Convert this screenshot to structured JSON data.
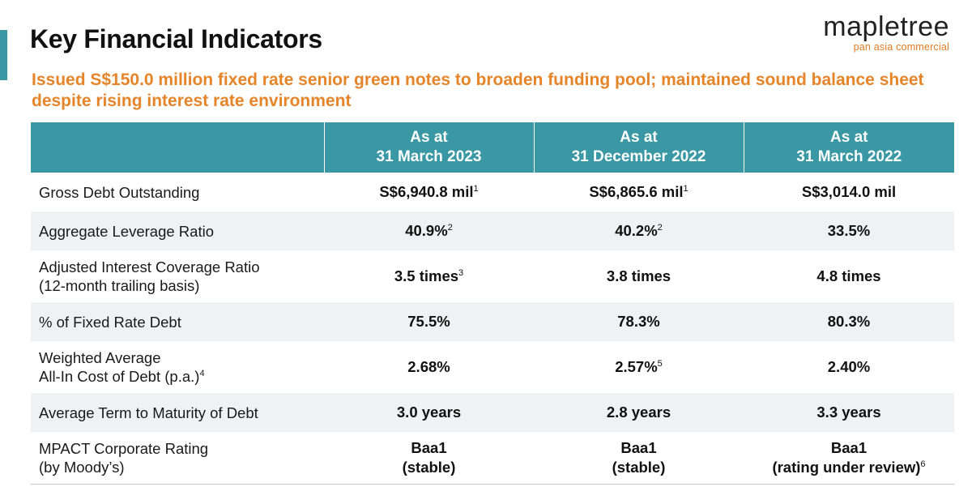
{
  "header": {
    "title": "Key Financial Indicators",
    "subtitle": "Issued S$150.0 million fixed rate senior green notes to broaden funding pool; maintained sound balance sheet despite rising interest rate environment"
  },
  "logo": {
    "wordmark": "mapletree",
    "tagline": "pan asia commercial"
  },
  "colors": {
    "accent": "#3a98a4",
    "subtitle": "#e6842a",
    "row_shade": "#f0f1f2"
  },
  "table": {
    "columns": [
      {
        "line1": "As at",
        "line2": "31 March 2023"
      },
      {
        "line1": "As at",
        "line2": "31 December 2022"
      },
      {
        "line1": "As at",
        "line2": "31 March 2022"
      }
    ],
    "rows": [
      {
        "label_line1": "Gross Debt Outstanding",
        "label_line2": "",
        "label_sup": "",
        "cells": [
          {
            "text": "S$6,940.8 mil",
            "sup": "1"
          },
          {
            "text": "S$6,865.6 mil",
            "sup": "1"
          },
          {
            "text": "S$3,014.0 mil",
            "sup": ""
          }
        ]
      },
      {
        "label_line1": "Aggregate Leverage Ratio",
        "label_line2": "",
        "label_sup": "",
        "cells": [
          {
            "text": "40.9%",
            "sup": "2"
          },
          {
            "text": "40.2%",
            "sup": "2"
          },
          {
            "text": "33.5%",
            "sup": ""
          }
        ]
      },
      {
        "label_line1": "Adjusted Interest Coverage Ratio",
        "label_line2": "(12-month trailing basis)",
        "label_sup": "",
        "cells": [
          {
            "text": "3.5 times",
            "sup": "3"
          },
          {
            "text": "3.8 times",
            "sup": ""
          },
          {
            "text": "4.8 times",
            "sup": ""
          }
        ]
      },
      {
        "label_line1": "% of Fixed Rate Debt",
        "label_line2": "",
        "label_sup": "",
        "cells": [
          {
            "text": "75.5%",
            "sup": ""
          },
          {
            "text": "78.3%",
            "sup": ""
          },
          {
            "text": "80.3%",
            "sup": ""
          }
        ]
      },
      {
        "label_line1": "Weighted Average",
        "label_line2": "All-In Cost of Debt (p.a.)",
        "label_sup": "4",
        "cells": [
          {
            "text": "2.68%",
            "sup": ""
          },
          {
            "text": "2.57%",
            "sup": "5"
          },
          {
            "text": "2.40%",
            "sup": ""
          }
        ]
      },
      {
        "label_line1": "Average Term to Maturity of Debt",
        "label_line2": "",
        "label_sup": "",
        "cells": [
          {
            "text": "3.0 years",
            "sup": ""
          },
          {
            "text": "2.8 years",
            "sup": ""
          },
          {
            "text": "3.3 years",
            "sup": ""
          }
        ]
      },
      {
        "label_line1": "MPACT Corporate Rating",
        "label_line2": "(by Moody’s)",
        "label_sup": "",
        "cells": [
          {
            "text": "Baa1",
            "text2": "(stable)",
            "sup": ""
          },
          {
            "text": "Baa1",
            "text2": "(stable)",
            "sup": ""
          },
          {
            "text": "Baa1",
            "text2": "(rating under review)",
            "sup": "6"
          }
        ]
      }
    ]
  }
}
